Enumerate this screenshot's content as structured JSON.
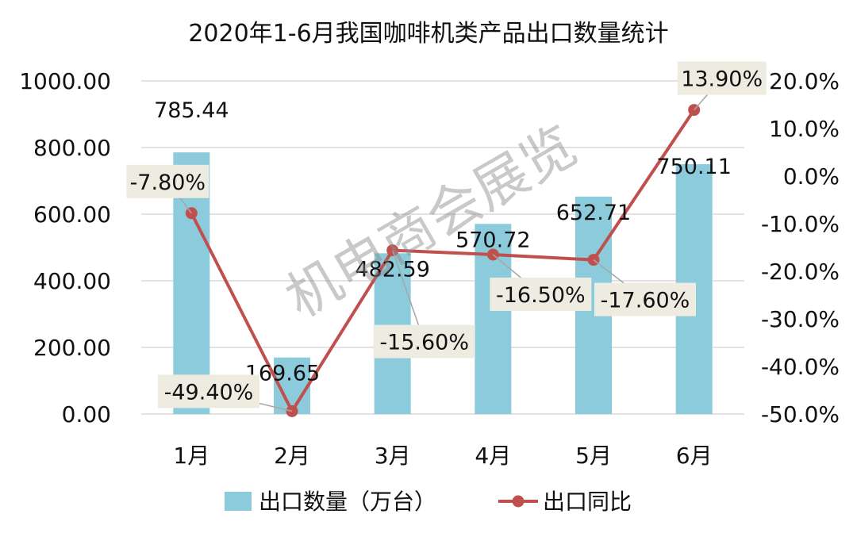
{
  "chart_data": {
    "type": "bar",
    "title": "2020年1-6月我国咖啡机类产品出口数量统计",
    "categories": [
      "1月",
      "2月",
      "3月",
      "4月",
      "5月",
      "6月"
    ],
    "series": [
      {
        "name": "出口数量（万台）",
        "type": "bar",
        "axis": "left",
        "values": [
          785.44,
          169.65,
          482.59,
          570.72,
          652.71,
          750.11
        ],
        "labels": [
          "785.44",
          "169.65",
          "482.59",
          "570.72",
          "652.71",
          "750.11"
        ],
        "color": "#8ccbdb"
      },
      {
        "name": "出口同比",
        "type": "line",
        "axis": "right",
        "values": [
          -7.8,
          -49.4,
          -15.6,
          -16.5,
          -17.6,
          13.9
        ],
        "labels": [
          "-7.80%",
          "-49.40%",
          "-15.60%",
          "-16.50%",
          "-17.60%",
          "13.90%"
        ],
        "color": "#c0504d"
      }
    ],
    "left_axis": {
      "min": 0,
      "max": 1000,
      "step": 200,
      "tick_labels": [
        "0.00",
        "200.00",
        "400.00",
        "600.00",
        "800.00",
        "1000.00"
      ]
    },
    "right_axis": {
      "min": -50,
      "max": 20,
      "step": 10,
      "tick_labels": [
        "-50.0%",
        "-40.0%",
        "-30.0%",
        "-20.0%",
        "-10.0%",
        "0.0%",
        "10.0%",
        "20.0%"
      ]
    },
    "grid": true,
    "legend_position": "bottom",
    "label_box_color": "#eeece1",
    "watermark": "机电商会展览"
  }
}
